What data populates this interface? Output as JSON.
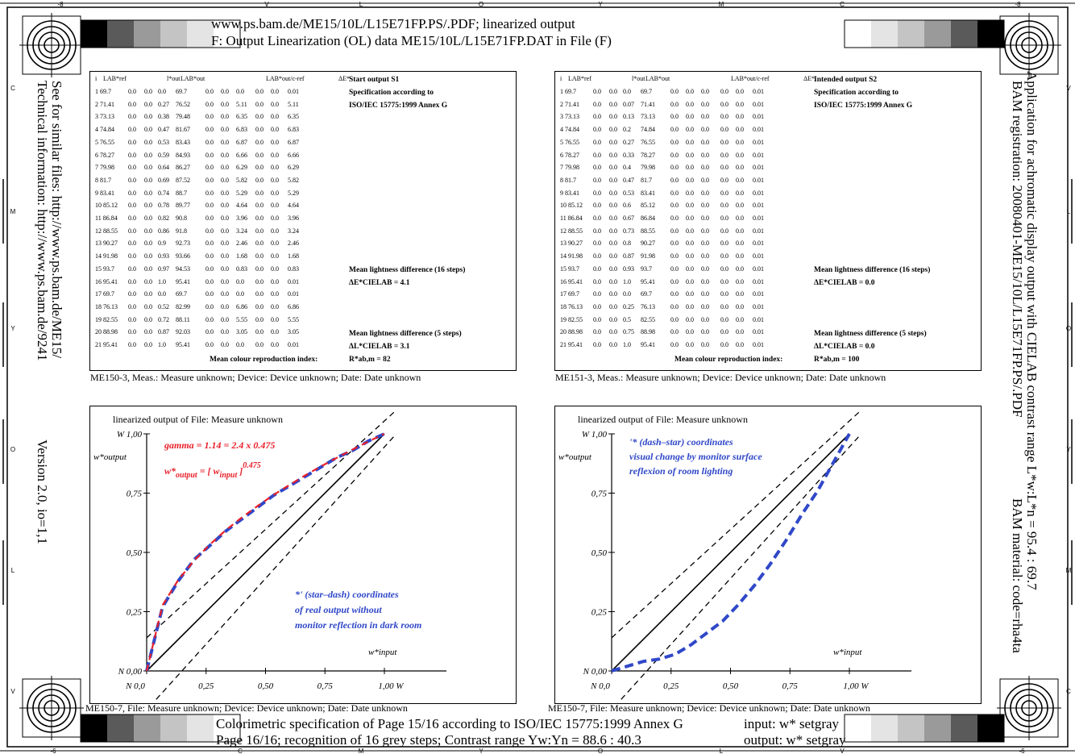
{
  "header": {
    "line1": "www.ps.bam.de/ME15/10L/L15E71FP.PS/.PDF; linearized output",
    "line2": "F: Output Linearization (OL) data ME15/10L/L15E71FP.DAT in File (F)"
  },
  "footer": {
    "line1": "Colorimetric specification of Page 15/16 according to ISO/IEC 15775:1999 Annex G",
    "line2": "Page 16/16; recognition of 16 grey steps; Contrast range Yw:Yn = 88.6 : 40.3",
    "input": "input: w* setgray",
    "output": "output: w* setgray"
  },
  "side": {
    "left1": "See for similar files: http://www.ps.bam.de/ME15/",
    "left2": "Technical information: http://www.ps.bam.de/9241",
    "left3": "Version 2.0, io=1,1",
    "right1": "BAM registration: 20080401-ME15/10L/L15E71FP.PS/.PDF",
    "right2": "Application for achromatic display output with CIELAB contrast range L*w:L*n = 95.4 : 69.7",
    "right3": "BAM material: code=rha4ta"
  },
  "edge_top": [
    "-8",
    "V",
    "L",
    "O",
    "Y",
    "M",
    "C",
    "-8"
  ],
  "edge_bottom": [
    "-6",
    "C",
    "M",
    "Y",
    "O",
    "L",
    "V",
    "-6"
  ],
  "edge_left": [
    "C",
    "M",
    "Y",
    "O",
    "L",
    "V"
  ],
  "edge_right": [
    "V",
    "L",
    "O",
    "Y",
    "M",
    "C"
  ],
  "table_headers": [
    "i",
    "LAB*ref",
    "l*out",
    "LAB*out",
    "LAB*out/c-ref",
    "ΔE*"
  ],
  "table1": {
    "title": "Start output S1",
    "spec1": "Specification according to",
    "spec2": "ISO/IEC 15775:1999 Annex G",
    "rows": [
      [
        "1 69.7",
        "0.0",
        "0.0",
        "0.0",
        "69.7",
        "0.0",
        "0.0",
        "0.0",
        "0.0",
        "0.0",
        "0.01"
      ],
      [
        "2 71.41",
        "0.0",
        "0.0",
        "0.27",
        "76.52",
        "0.0",
        "0.0",
        "5.11",
        "0.0",
        "0.0",
        "5.11"
      ],
      [
        "3 73.13",
        "0.0",
        "0.0",
        "0.38",
        "79.48",
        "0.0",
        "0.0",
        "6.35",
        "0.0",
        "0.0",
        "6.35"
      ],
      [
        "4 74.84",
        "0.0",
        "0.0",
        "0.47",
        "81.67",
        "0.0",
        "0.0",
        "6.83",
        "0.0",
        "0.0",
        "6.83"
      ],
      [
        "5 76.55",
        "0.0",
        "0.0",
        "0.53",
        "83.43",
        "0.0",
        "0.0",
        "6.87",
        "0.0",
        "0.0",
        "6.87"
      ],
      [
        "6 78.27",
        "0.0",
        "0.0",
        "0.59",
        "84.93",
        "0.0",
        "0.0",
        "6.66",
        "0.0",
        "0.0",
        "6.66"
      ],
      [
        "7 79.98",
        "0.0",
        "0.0",
        "0.64",
        "86.27",
        "0.0",
        "0.0",
        "6.29",
        "0.0",
        "0.0",
        "6.29"
      ],
      [
        "8 81.7",
        "0.0",
        "0.0",
        "0.69",
        "87.52",
        "0.0",
        "0.0",
        "5.82",
        "0.0",
        "0.0",
        "5.82"
      ],
      [
        "9 83.41",
        "0.0",
        "0.0",
        "0.74",
        "88.7",
        "0.0",
        "0.0",
        "5.29",
        "0.0",
        "0.0",
        "5.29"
      ],
      [
        "10 85.12",
        "0.0",
        "0.0",
        "0.78",
        "89.77",
        "0.0",
        "0.0",
        "4.64",
        "0.0",
        "0.0",
        "4.64"
      ],
      [
        "11 86.84",
        "0.0",
        "0.0",
        "0.82",
        "90.8",
        "0.0",
        "0.0",
        "3.96",
        "0.0",
        "0.0",
        "3.96"
      ],
      [
        "12 88.55",
        "0.0",
        "0.0",
        "0.86",
        "91.8",
        "0.0",
        "0.0",
        "3.24",
        "0.0",
        "0.0",
        "3.24"
      ],
      [
        "13 90.27",
        "0.0",
        "0.0",
        "0.9",
        "92.73",
        "0.0",
        "0.0",
        "2.46",
        "0.0",
        "0.0",
        "2.46"
      ],
      [
        "14 91.98",
        "0.0",
        "0.0",
        "0.93",
        "93.66",
        "0.0",
        "0.0",
        "1.68",
        "0.0",
        "0.0",
        "1.68"
      ],
      [
        "15 93.7",
        "0.0",
        "0.0",
        "0.97",
        "94.53",
        "0.0",
        "0.0",
        "0.83",
        "0.0",
        "0.0",
        "0.83"
      ],
      [
        "16 95.41",
        "0.0",
        "0.0",
        "1.0",
        "95.41",
        "0.0",
        "0.0",
        "0.0",
        "0.0",
        "0.0",
        "0.01"
      ],
      [
        "17 69.7",
        "0.0",
        "0.0",
        "0.0",
        "69.7",
        "0.0",
        "0.0",
        "0.0",
        "0.0",
        "0.0",
        "0.01"
      ],
      [
        "18 76.13",
        "0.0",
        "0.0",
        "0.52",
        "82.99",
        "0.0",
        "0.0",
        "6.86",
        "0.0",
        "0.0",
        "6.86"
      ],
      [
        "19 82.55",
        "0.0",
        "0.0",
        "0.72",
        "88.11",
        "0.0",
        "0.0",
        "5.55",
        "0.0",
        "0.0",
        "5.55"
      ],
      [
        "20 88.98",
        "0.0",
        "0.0",
        "0.87",
        "92.03",
        "0.0",
        "0.0",
        "3.05",
        "0.0",
        "0.0",
        "3.05"
      ],
      [
        "21 95.41",
        "0.0",
        "0.0",
        "1.0",
        "95.41",
        "0.0",
        "0.0",
        "0.0",
        "0.0",
        "0.0",
        "0.01"
      ]
    ],
    "mean16_label": "Mean lightness difference (16 steps)",
    "mean16_value": "ΔE*CIELAB =    4.1",
    "mean5_label": "Mean lightness difference (5 steps)",
    "mean5_value": "ΔL*CIELAB =    3.1",
    "reproduction_label": "Mean colour reproduction index:",
    "reproduction_value": "R*ab,m =  82",
    "caption": "ME150-3, Meas.: Measure unknown; Device: Device unknown; Date: Date unknown"
  },
  "table2": {
    "title": "Intended output S2",
    "spec1": "Specification according to",
    "spec2": "ISO/IEC 15775:1999 Annex G",
    "rows": [
      [
        "1 69.7",
        "0.0",
        "0.0",
        "0.0",
        "69.7",
        "0.0",
        "0.0",
        "0.0",
        "0.0",
        "0.0",
        "0.01"
      ],
      [
        "2 71.41",
        "0.0",
        "0.0",
        "0.07",
        "71.41",
        "0.0",
        "0.0",
        "0.0",
        "0.0",
        "0.0",
        "0.01"
      ],
      [
        "3 73.13",
        "0.0",
        "0.0",
        "0.13",
        "73.13",
        "0.0",
        "0.0",
        "0.0",
        "0.0",
        "0.0",
        "0.01"
      ],
      [
        "4 74.84",
        "0.0",
        "0.0",
        "0.2",
        "74.84",
        "0.0",
        "0.0",
        "0.0",
        "0.0",
        "0.0",
        "0.01"
      ],
      [
        "5 76.55",
        "0.0",
        "0.0",
        "0.27",
        "76.55",
        "0.0",
        "0.0",
        "0.0",
        "0.0",
        "0.0",
        "0.01"
      ],
      [
        "6 78.27",
        "0.0",
        "0.0",
        "0.33",
        "78.27",
        "0.0",
        "0.0",
        "0.0",
        "0.0",
        "0.0",
        "0.01"
      ],
      [
        "7 79.98",
        "0.0",
        "0.0",
        "0.4",
        "79.98",
        "0.0",
        "0.0",
        "0.0",
        "0.0",
        "0.0",
        "0.01"
      ],
      [
        "8 81.7",
        "0.0",
        "0.0",
        "0.47",
        "81.7",
        "0.0",
        "0.0",
        "0.0",
        "0.0",
        "0.0",
        "0.01"
      ],
      [
        "9 83.41",
        "0.0",
        "0.0",
        "0.53",
        "83.41",
        "0.0",
        "0.0",
        "0.0",
        "0.0",
        "0.0",
        "0.01"
      ],
      [
        "10 85.12",
        "0.0",
        "0.0",
        "0.6",
        "85.12",
        "0.0",
        "0.0",
        "0.0",
        "0.0",
        "0.0",
        "0.01"
      ],
      [
        "11 86.84",
        "0.0",
        "0.0",
        "0.67",
        "86.84",
        "0.0",
        "0.0",
        "0.0",
        "0.0",
        "0.0",
        "0.01"
      ],
      [
        "12 88.55",
        "0.0",
        "0.0",
        "0.73",
        "88.55",
        "0.0",
        "0.0",
        "0.0",
        "0.0",
        "0.0",
        "0.01"
      ],
      [
        "13 90.27",
        "0.0",
        "0.0",
        "0.8",
        "90.27",
        "0.0",
        "0.0",
        "0.0",
        "0.0",
        "0.0",
        "0.01"
      ],
      [
        "14 91.98",
        "0.0",
        "0.0",
        "0.87",
        "91.98",
        "0.0",
        "0.0",
        "0.0",
        "0.0",
        "0.0",
        "0.01"
      ],
      [
        "15 93.7",
        "0.0",
        "0.0",
        "0.93",
        "93.7",
        "0.0",
        "0.0",
        "0.0",
        "0.0",
        "0.0",
        "0.01"
      ],
      [
        "16 95.41",
        "0.0",
        "0.0",
        "1.0",
        "95.41",
        "0.0",
        "0.0",
        "0.0",
        "0.0",
        "0.0",
        "0.01"
      ],
      [
        "17 69.7",
        "0.0",
        "0.0",
        "0.0",
        "69.7",
        "0.0",
        "0.0",
        "0.0",
        "0.0",
        "0.0",
        "0.01"
      ],
      [
        "18 76.13",
        "0.0",
        "0.0",
        "0.25",
        "76.13",
        "0.0",
        "0.0",
        "0.0",
        "0.0",
        "0.0",
        "0.01"
      ],
      [
        "19 82.55",
        "0.0",
        "0.0",
        "0.5",
        "82.55",
        "0.0",
        "0.0",
        "0.0",
        "0.0",
        "0.0",
        "0.01"
      ],
      [
        "20 88.98",
        "0.0",
        "0.0",
        "0.75",
        "88.98",
        "0.0",
        "0.0",
        "0.0",
        "0.0",
        "0.0",
        "0.01"
      ],
      [
        "21 95.41",
        "0.0",
        "0.0",
        "1.0",
        "95.41",
        "0.0",
        "0.0",
        "0.0",
        "0.0",
        "0.0",
        "0.01"
      ]
    ],
    "mean16_label": "Mean lightness difference (16 steps)",
    "mean16_value": "ΔE*CIELAB =    0.0",
    "mean5_label": "Mean lightness difference (5 steps)",
    "mean5_value": "ΔL*CIELAB =    0.0",
    "reproduction_label": "Mean colour reproduction index:",
    "reproduction_value": "R*ab,m =  100",
    "caption": "ME151-3, Meas.: Measure unknown; Device: Device unknown; Date: Date unknown"
  },
  "chart_data": [
    {
      "type": "line",
      "title": "linearized output of File: Measure unknown",
      "xlabel": "w*input",
      "ylabel": "w*output",
      "xlim": [
        0,
        1
      ],
      "ylim": [
        0,
        1
      ],
      "x_ticks": [
        "N 0,0",
        "0,25",
        "0,50",
        "0,75",
        "1,00  W"
      ],
      "y_ticks": [
        "N 0,00",
        "0,25",
        "0,50",
        "0,75",
        "W 1,00"
      ],
      "annotation_red1": "gamma = 1.14 = 2.4 x 0.475",
      "annotation_red2_a": "w*",
      "annotation_red2_b": "output",
      "annotation_red2_c": " = [ w",
      "annotation_red2_d": "input",
      "annotation_red2_e": " ]",
      "annotation_red2_f": "0.475",
      "annotation_blue": [
        "*' (star–dash) coordinates",
        "of real output without",
        "monitor reflection in dark room"
      ],
      "caption": "ME150-7, File: Measure unknown; Device: Device unknown; Date: Date unknown",
      "x": [
        0,
        0.0667,
        0.1333,
        0.2,
        0.2667,
        0.3333,
        0.4,
        0.4667,
        0.5333,
        0.6,
        0.6667,
        0.7333,
        0.8,
        0.8667,
        0.9333,
        1.0
      ],
      "y_red": [
        0.0,
        0.277,
        0.384,
        0.466,
        0.534,
        0.594,
        0.647,
        0.696,
        0.742,
        0.784,
        0.825,
        0.863,
        0.899,
        0.934,
        0.968,
        1.0
      ],
      "y_blue": [
        0.0,
        0.27,
        0.38,
        0.47,
        0.53,
        0.59,
        0.64,
        0.69,
        0.74,
        0.78,
        0.82,
        0.86,
        0.9,
        0.93,
        0.97,
        1.0
      ]
    },
    {
      "type": "line",
      "title": "linearized output of File: Measure unknown",
      "xlabel": "w*input",
      "ylabel": "w*output",
      "xlim": [
        0,
        1
      ],
      "ylim": [
        0,
        1
      ],
      "x_ticks": [
        "N 0,0",
        "0,25",
        "0,50",
        "0,75",
        "1,00  W"
      ],
      "y_ticks": [
        "N 0,00",
        "0,25",
        "0,50",
        "0,75",
        "W 1,00"
      ],
      "annotation_blue": [
        "'* (dash–star) coordinates",
        "visual change by monitor surface",
        "reflexion of room lighting"
      ],
      "caption": "ME150-7, File: Measure unknown; Device: Device unknown; Date: Date unknown",
      "x": [
        0,
        0.0667,
        0.1333,
        0.2,
        0.2667,
        0.3333,
        0.4,
        0.4667,
        0.5333,
        0.6,
        0.6667,
        0.7333,
        0.8,
        0.8667,
        0.9333,
        1.0
      ],
      "y_blue": [
        0.0,
        0.02,
        0.04,
        0.05,
        0.07,
        0.11,
        0.16,
        0.21,
        0.28,
        0.36,
        0.45,
        0.55,
        0.66,
        0.76,
        0.88,
        1.0
      ]
    }
  ],
  "grey_colors": [
    "#000000",
    "#5a5a5a",
    "#9a9a9a",
    "#c4c4c4",
    "#e4e4e4",
    "#ffffff"
  ],
  "colors": {
    "red": "#e8202a",
    "blue": "#3048c8"
  }
}
